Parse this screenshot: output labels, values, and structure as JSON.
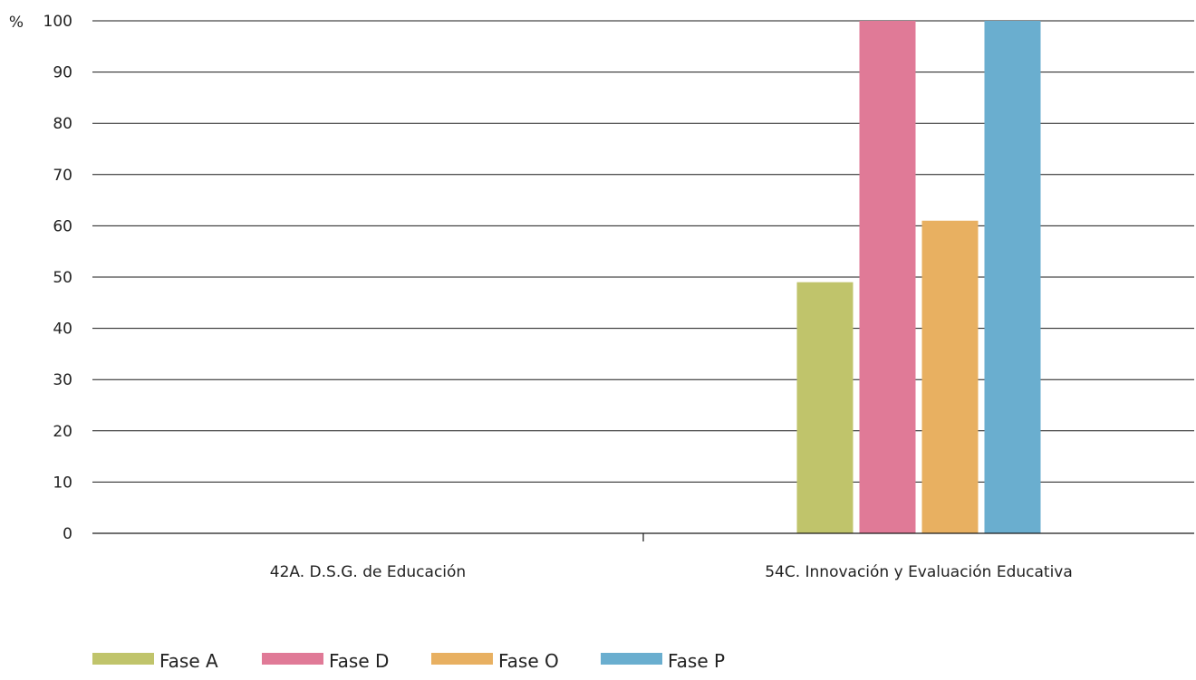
{
  "chart_data": {
    "type": "bar",
    "title": "",
    "xlabel": "",
    "ylabel": "%",
    "ylim": [
      0,
      100
    ],
    "yticks": [
      0,
      10,
      20,
      30,
      40,
      50,
      60,
      70,
      80,
      90,
      100
    ],
    "grid": true,
    "legend_position": "bottom-left",
    "categories": [
      "42A. D.S.G. de Educación",
      "54C. Innovación y Evaluación Educativa"
    ],
    "series": [
      {
        "name": "Fase A",
        "color": "#c0c46b",
        "values": [
          0,
          49
        ]
      },
      {
        "name": "Fase D",
        "color": "#e07a97",
        "values": [
          0,
          100
        ]
      },
      {
        "name": "Fase O",
        "color": "#e8b061",
        "values": [
          0,
          61
        ]
      },
      {
        "name": "Fase P",
        "color": "#6aaecf",
        "values": [
          0,
          100
        ]
      }
    ]
  }
}
